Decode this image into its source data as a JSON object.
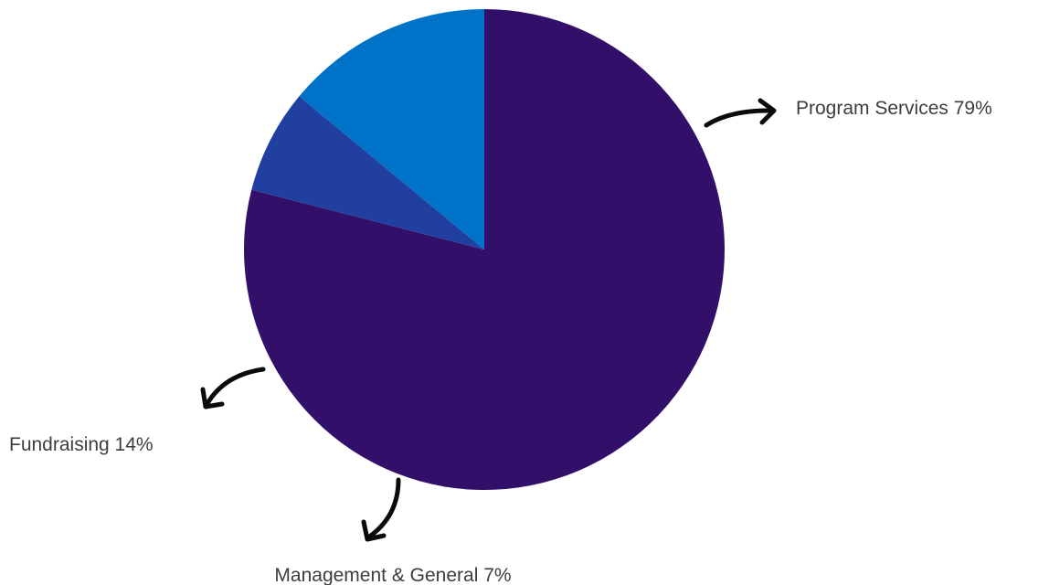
{
  "chart_data": {
    "type": "pie",
    "start_angle_deg": 270,
    "direction": "clockwise",
    "slices": [
      {
        "label": "Program Services 79%",
        "value": 79,
        "color": "#32106a"
      },
      {
        "label": "Management & General 7%",
        "value": 7,
        "color": "#213f9e"
      },
      {
        "label": "Fundraising 14%",
        "value": 14,
        "color": "#0072c8"
      }
    ],
    "legend": "none",
    "annotation_style": "curved black arrows pointing from slices to labels"
  }
}
